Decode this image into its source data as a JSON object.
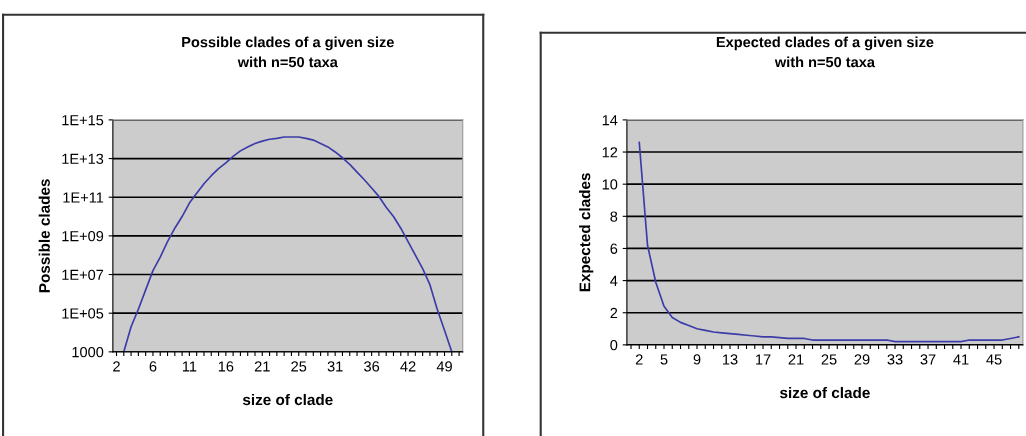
{
  "chart_data": [
    {
      "type": "line",
      "title": "Possible clades of a given size\nwith n=50 taxa",
      "xlabel": "size of clade",
      "ylabel": "Possible clades",
      "log": "y",
      "grid": "y",
      "categories": [
        "2",
        null,
        null,
        null,
        null,
        "6",
        null,
        null,
        null,
        null,
        "11",
        null,
        null,
        null,
        null,
        "16",
        null,
        null,
        null,
        null,
        "21",
        null,
        null,
        null,
        null,
        "25",
        null,
        null,
        null,
        null,
        "31",
        null,
        null,
        null,
        null,
        "36",
        null,
        null,
        null,
        null,
        "42",
        null,
        null,
        null,
        null,
        "49",
        null,
        null
      ],
      "series": [
        {
          "color": "#3c3ca8",
          "values": [
            null,
            1000,
            20000.0,
            160000.0,
            1600000.0,
            16000000.0,
            80000000.0,
            500000000.0,
            2500000000.0,
            10000000000.0,
            50000000000.0,
            160000000000.0,
            500000000000.0,
            1300000000000.0,
            3000000000000.0,
            6000000000000.0,
            13000000000000.0,
            25000000000000.0,
            40000000000000.0,
            60000000000000.0,
            80000000000000.0,
            100000000000000.0,
            110000000000000.0,
            130000000000000.0,
            130000000000000.0,
            130000000000000.0,
            110000000000000.0,
            90000000000000.0,
            60000000000000.0,
            40000000000000.0,
            22000000000000.0,
            11000000000000.0,
            5000000000000.0,
            2000000000000.0,
            800000000000.0,
            300000000000.0,
            110000000000.0,
            30000000000.0,
            10000000000.0,
            2500000000.0,
            500000000.0,
            100000000.0,
            20000000.0,
            3000000.0,
            160000.0,
            13000.0,
            1000,
            null
          ]
        }
      ],
      "ylim": [
        1000,
        1000000000000000.0
      ],
      "yticks": [
        {
          "value": 1000,
          "label": "1000"
        },
        {
          "value": 100000.0,
          "label": "1E+05"
        },
        {
          "value": 10000000.0,
          "label": "1E+07"
        },
        {
          "value": 1000000000.0,
          "label": "1E+09"
        },
        {
          "value": 100000000000.0,
          "label": "1E+11"
        },
        {
          "value": 10000000000000.0,
          "label": "1E+13"
        },
        {
          "value": 1000000000000000.0,
          "label": "1E+15"
        }
      ]
    },
    {
      "type": "line",
      "title": "Expected clades of a given size\nwith n=50 taxa",
      "xlabel": "size of clade",
      "ylabel": "Expected clades",
      "grid": "y",
      "categories": [
        null,
        "2",
        null,
        null,
        "5",
        null,
        null,
        null,
        "9",
        null,
        null,
        null,
        "13",
        null,
        null,
        null,
        "17",
        null,
        null,
        null,
        "21",
        null,
        null,
        null,
        "25",
        null,
        null,
        null,
        "29",
        null,
        null,
        null,
        "33",
        null,
        null,
        null,
        "37",
        null,
        null,
        null,
        "41",
        null,
        null,
        null,
        "45",
        null,
        null,
        null
      ],
      "series": [
        {
          "color": "#3c3ca8",
          "values": [
            null,
            12.6,
            6.2,
            3.9,
            2.4,
            1.7,
            1.4,
            1.2,
            1.0,
            0.9,
            0.8,
            0.75,
            0.7,
            0.65,
            0.6,
            0.55,
            0.5,
            0.5,
            0.45,
            0.4,
            0.4,
            0.4,
            0.3,
            0.3,
            0.3,
            0.3,
            0.3,
            0.3,
            0.3,
            0.3,
            0.3,
            0.3,
            0.2,
            0.2,
            0.2,
            0.2,
            0.2,
            0.2,
            0.2,
            0.2,
            0.2,
            0.3,
            0.3,
            0.3,
            0.3,
            0.3,
            0.4,
            0.5
          ]
        }
      ],
      "ylim": [
        0,
        14
      ],
      "yticks": [
        0,
        2,
        4,
        6,
        8,
        10,
        12,
        14
      ]
    }
  ]
}
